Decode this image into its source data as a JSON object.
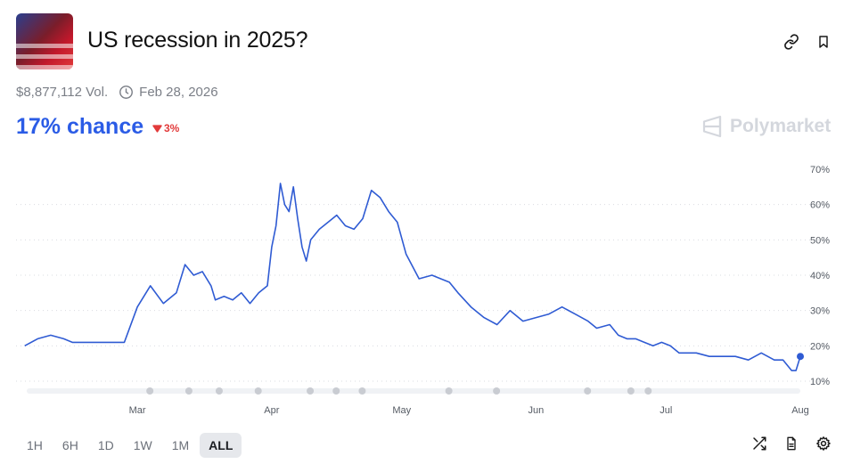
{
  "market": {
    "title": "US recession in 2025?",
    "volume": "$8,877,112 Vol.",
    "end_date": "Feb 28, 2026",
    "chance_label": "17% chance",
    "change_label": "3%",
    "brand": "Polymarket"
  },
  "icons": {
    "link": "link-icon",
    "bookmark": "bookmark-icon",
    "clock": "clock-icon",
    "down": "triangle-down-icon",
    "shuffle": "shuffle-icon",
    "doc": "document-icon",
    "gear": "gear-icon"
  },
  "colors": {
    "accent": "#2b5ce6",
    "line": "#2f5bd3",
    "negative": "#e23b3b",
    "muted": "#7b7f87"
  },
  "time_ranges": [
    "1H",
    "6H",
    "1D",
    "1W",
    "1M",
    "ALL"
  ],
  "active_range": "ALL",
  "chart_data": {
    "type": "line",
    "title": "",
    "xlabel": "",
    "ylabel": "",
    "x_ticks": [
      "Mar",
      "Apr",
      "May",
      "Jun",
      "Jul",
      "Aug"
    ],
    "y_ticks": [
      "70%",
      "60%",
      "50%",
      "40%",
      "30%",
      "20%",
      "10%"
    ],
    "ylim": [
      10,
      70
    ],
    "grid": true,
    "series": [
      {
        "name": "",
        "x": [
          "2025-02-03",
          "2025-02-06",
          "2025-02-09",
          "2025-02-12",
          "2025-02-14",
          "2025-02-16",
          "2025-02-18",
          "2025-02-20",
          "2025-02-23",
          "2025-02-26",
          "2025-03-01",
          "2025-03-04",
          "2025-03-07",
          "2025-03-10",
          "2025-03-12",
          "2025-03-14",
          "2025-03-16",
          "2025-03-18",
          "2025-03-19",
          "2025-03-21",
          "2025-03-23",
          "2025-03-25",
          "2025-03-27",
          "2025-03-29",
          "2025-03-31",
          "2025-04-01",
          "2025-04-02",
          "2025-04-03",
          "2025-04-04",
          "2025-04-05",
          "2025-04-06",
          "2025-04-07",
          "2025-04-08",
          "2025-04-09",
          "2025-04-10",
          "2025-04-12",
          "2025-04-14",
          "2025-04-16",
          "2025-04-18",
          "2025-04-20",
          "2025-04-22",
          "2025-04-24",
          "2025-04-26",
          "2025-04-28",
          "2025-04-30",
          "2025-05-02",
          "2025-05-05",
          "2025-05-08",
          "2025-05-10",
          "2025-05-12",
          "2025-05-14",
          "2025-05-17",
          "2025-05-20",
          "2025-05-23",
          "2025-05-26",
          "2025-05-29",
          "2025-06-01",
          "2025-06-04",
          "2025-06-07",
          "2025-06-10",
          "2025-06-13",
          "2025-06-15",
          "2025-06-18",
          "2025-06-20",
          "2025-06-22",
          "2025-06-24",
          "2025-06-26",
          "2025-06-28",
          "2025-06-30",
          "2025-07-02",
          "2025-07-04",
          "2025-07-06",
          "2025-07-08",
          "2025-07-11",
          "2025-07-14",
          "2025-07-17",
          "2025-07-20",
          "2025-07-23",
          "2025-07-26",
          "2025-07-28",
          "2025-07-30",
          "2025-07-31",
          "2025-08-01"
        ],
        "values": [
          20,
          22,
          23,
          22,
          21,
          21,
          21,
          21,
          21,
          21,
          31,
          37,
          32,
          35,
          43,
          40,
          41,
          37,
          33,
          34,
          33,
          35,
          32,
          35,
          37,
          48,
          54,
          66,
          60,
          58,
          65,
          56,
          48,
          44,
          50,
          53,
          55,
          57,
          54,
          53,
          56,
          64,
          62,
          58,
          55,
          46,
          39,
          40,
          39,
          38,
          35,
          31,
          28,
          26,
          30,
          27,
          28,
          29,
          31,
          29,
          27,
          25,
          26,
          23,
          22,
          22,
          21,
          20,
          21,
          20,
          18,
          18,
          18,
          17,
          17,
          17,
          16,
          18,
          16,
          16,
          13,
          13,
          17
        ]
      }
    ]
  }
}
